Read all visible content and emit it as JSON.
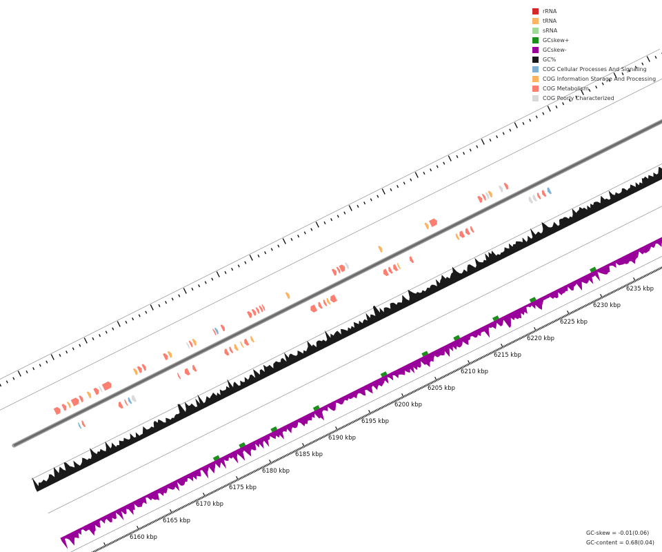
{
  "legend": [
    {
      "label": "rRNA",
      "color": "#d62728"
    },
    {
      "label": "tRNA",
      "color": "#fdb462"
    },
    {
      "label": "sRNA",
      "color": "#a1d99b"
    },
    {
      "label": "GCskew+",
      "color": "#1a8f1a"
    },
    {
      "label": "GCskew-",
      "color": "#990099"
    },
    {
      "label": "GC%",
      "color": "#1a1a1a"
    },
    {
      "label": "COG Cellular Processes And Signaling",
      "color": "#80b1d3"
    },
    {
      "label": "COG Information Storage And Processing",
      "color": "#fdb462"
    },
    {
      "label": "COG Metabolism",
      "color": "#fb8072"
    },
    {
      "label": "COG Poorly Characterized",
      "color": "#d9d9d9"
    }
  ],
  "stats": {
    "gc_skew_label": "GC-skew = -0.01(0.06)",
    "gc_content_label": "GC-content = 0.68(0.04)"
  },
  "chart_data": {
    "type": "genome-linear-track",
    "axis_unit": "kbp",
    "range_kbp": [
      6156,
      6240
    ],
    "tick_labels": [
      "6160 kbp",
      "6165 kbp",
      "6170 kbp",
      "6175 kbp",
      "6180 kbp",
      "6185 kbp",
      "6190 kbp",
      "6195 kbp",
      "6200 kbp",
      "6205 kbp",
      "6210 kbp",
      "6215 kbp",
      "6220 kbp",
      "6225 kbp",
      "6230 kbp",
      "6235 kbp"
    ],
    "tick_values": [
      6160,
      6165,
      6170,
      6175,
      6180,
      6185,
      6190,
      6195,
      6200,
      6205,
      6210,
      6215,
      6220,
      6225,
      6230,
      6235
    ],
    "tracks": [
      "features-forward",
      "backbone",
      "features-reverse",
      "GC%",
      "GC-skew",
      "scale"
    ],
    "features": [
      {
        "start": 6157.0,
        "len": 0.8,
        "strand": 1,
        "cat": "COG Metabolism"
      },
      {
        "start": 6158.2,
        "len": 0.5,
        "strand": 1,
        "cat": "COG Metabolism"
      },
      {
        "start": 6159.0,
        "len": 0.3,
        "strand": 1,
        "cat": "tRNA"
      },
      {
        "start": 6159.6,
        "len": 1.0,
        "strand": 1,
        "cat": "COG Metabolism"
      },
      {
        "start": 6160.8,
        "len": 0.4,
        "strand": 1,
        "cat": "COG Metabolism"
      },
      {
        "start": 6162.0,
        "len": 0.4,
        "strand": 1,
        "cat": "COG Information Storage And Processing"
      },
      {
        "start": 6163.0,
        "len": 0.6,
        "strand": 1,
        "cat": "COG Metabolism"
      },
      {
        "start": 6163.8,
        "len": 0.2,
        "strand": 1,
        "cat": "COG Poorly Characterized"
      },
      {
        "start": 6164.3,
        "len": 1.2,
        "strand": 1,
        "cat": "COG Metabolism"
      },
      {
        "start": 6169.0,
        "len": 0.4,
        "strand": 1,
        "cat": "COG Information Storage And Processing"
      },
      {
        "start": 6169.6,
        "len": 0.5,
        "strand": 1,
        "cat": "COG Metabolism"
      },
      {
        "start": 6170.3,
        "len": 0.4,
        "strand": 1,
        "cat": "COG Metabolism"
      },
      {
        "start": 6173.5,
        "len": 0.5,
        "strand": 1,
        "cat": "COG Metabolism"
      },
      {
        "start": 6174.2,
        "len": 0.4,
        "strand": 1,
        "cat": "COG Information Storage And Processing"
      },
      {
        "start": 6177.0,
        "len": 0.2,
        "strand": 1,
        "cat": "COG Poorly Characterized"
      },
      {
        "start": 6177.4,
        "len": 0.3,
        "strand": 1,
        "cat": "COG Metabolism"
      },
      {
        "start": 6177.9,
        "len": 0.4,
        "strand": 1,
        "cat": "COG Information Storage And Processing"
      },
      {
        "start": 6181.0,
        "len": 0.2,
        "strand": 1,
        "cat": "COG Metabolism"
      },
      {
        "start": 6181.3,
        "len": 0.3,
        "strand": 1,
        "cat": "COG Cellular Processes And Signaling"
      },
      {
        "start": 6182.2,
        "len": 0.4,
        "strand": 1,
        "cat": "COG Metabolism"
      },
      {
        "start": 6186.2,
        "len": 0.5,
        "strand": 1,
        "cat": "COG Metabolism"
      },
      {
        "start": 6186.9,
        "len": 0.4,
        "strand": 1,
        "cat": "COG Metabolism"
      },
      {
        "start": 6187.5,
        "len": 0.3,
        "strand": 1,
        "cat": "COG Metabolism"
      },
      {
        "start": 6188.0,
        "len": 0.3,
        "strand": 1,
        "cat": "COG Metabolism"
      },
      {
        "start": 6188.4,
        "len": 0.2,
        "strand": 1,
        "cat": "COG Metabolism"
      },
      {
        "start": 6192.0,
        "len": 0.4,
        "strand": 1,
        "cat": "COG Information Storage And Processing"
      },
      {
        "start": 6199.0,
        "len": 0.5,
        "strand": 1,
        "cat": "COG Metabolism"
      },
      {
        "start": 6199.7,
        "len": 0.3,
        "strand": 1,
        "cat": "COG Metabolism"
      },
      {
        "start": 6200.1,
        "len": 0.7,
        "strand": 1,
        "cat": "COG Metabolism"
      },
      {
        "start": 6201.0,
        "len": 0.3,
        "strand": 1,
        "cat": "COG Poorly Characterized"
      },
      {
        "start": 6206.0,
        "len": 0.4,
        "strand": 1,
        "cat": "COG Information Storage And Processing"
      },
      {
        "start": 6213.0,
        "len": 0.4,
        "strand": 1,
        "cat": "COG Information Storage And Processing"
      },
      {
        "start": 6213.7,
        "len": 1.0,
        "strand": 1,
        "cat": "COG Metabolism"
      },
      {
        "start": 6221.0,
        "len": 0.5,
        "strand": 1,
        "cat": "COG Metabolism"
      },
      {
        "start": 6221.7,
        "len": 0.3,
        "strand": 1,
        "cat": "COG Metabolism"
      },
      {
        "start": 6222.2,
        "len": 0.3,
        "strand": 1,
        "cat": "COG Poorly Characterized"
      },
      {
        "start": 6222.6,
        "len": 0.4,
        "strand": 1,
        "cat": "COG Information Storage And Processing"
      },
      {
        "start": 6224.2,
        "len": 0.4,
        "strand": 1,
        "cat": "COG Poorly Characterized"
      },
      {
        "start": 6225.0,
        "len": 0.4,
        "strand": 1,
        "cat": "COG Metabolism"
      },
      {
        "start": 6159.0,
        "len": 0.2,
        "strand": -1,
        "cat": "COG Cellular Processes And Signaling"
      },
      {
        "start": 6159.5,
        "len": 0.3,
        "strand": -1,
        "cat": "COG Metabolism"
      },
      {
        "start": 6165.0,
        "len": 0.5,
        "strand": -1,
        "cat": "COG Metabolism"
      },
      {
        "start": 6166.0,
        "len": 0.2,
        "strand": -1,
        "cat": "COG Metabolism"
      },
      {
        "start": 6166.5,
        "len": 0.3,
        "strand": -1,
        "cat": "COG Cellular Processes And Signaling"
      },
      {
        "start": 6167.0,
        "len": 0.5,
        "strand": -1,
        "cat": "COG Poorly Characterized"
      },
      {
        "start": 6174.0,
        "len": 0.2,
        "strand": -1,
        "cat": "COG Metabolism"
      },
      {
        "start": 6175.0,
        "len": 0.6,
        "strand": -1,
        "cat": "COG Metabolism"
      },
      {
        "start": 6176.2,
        "len": 0.4,
        "strand": -1,
        "cat": "COG Metabolism"
      },
      {
        "start": 6181.0,
        "len": 0.5,
        "strand": -1,
        "cat": "COG Metabolism"
      },
      {
        "start": 6181.8,
        "len": 0.3,
        "strand": -1,
        "cat": "COG Metabolism"
      },
      {
        "start": 6182.5,
        "len": 0.4,
        "strand": -1,
        "cat": "COG Information Storage And Processing"
      },
      {
        "start": 6183.5,
        "len": 0.2,
        "strand": -1,
        "cat": "COG Information Storage And Processing"
      },
      {
        "start": 6184.0,
        "len": 0.5,
        "strand": -1,
        "cat": "COG Metabolism"
      },
      {
        "start": 6185.0,
        "len": 0.3,
        "strand": -1,
        "cat": "COG Information Storage And Processing"
      },
      {
        "start": 6194.0,
        "len": 0.8,
        "strand": -1,
        "cat": "COG Metabolism"
      },
      {
        "start": 6195.2,
        "len": 0.4,
        "strand": -1,
        "cat": "COG Metabolism"
      },
      {
        "start": 6196.0,
        "len": 0.3,
        "strand": -1,
        "cat": "COG Metabolism"
      },
      {
        "start": 6196.5,
        "len": 0.3,
        "strand": -1,
        "cat": "COG Information Storage And Processing"
      },
      {
        "start": 6197.0,
        "len": 0.8,
        "strand": -1,
        "cat": "COG Metabolism"
      },
      {
        "start": 6205.0,
        "len": 0.6,
        "strand": -1,
        "cat": "COG Metabolism"
      },
      {
        "start": 6205.8,
        "len": 0.4,
        "strand": -1,
        "cat": "COG Metabolism"
      },
      {
        "start": 6206.5,
        "len": 0.5,
        "strand": -1,
        "cat": "COG Metabolism"
      },
      {
        "start": 6207.2,
        "len": 0.2,
        "strand": -1,
        "cat": "COG Information Storage And Processing"
      },
      {
        "start": 6209.0,
        "len": 0.4,
        "strand": -1,
        "cat": "COG Metabolism"
      },
      {
        "start": 6216.0,
        "len": 0.3,
        "strand": -1,
        "cat": "COG Information Storage And Processing"
      },
      {
        "start": 6216.5,
        "len": 0.6,
        "strand": -1,
        "cat": "COG Metabolism"
      },
      {
        "start": 6217.4,
        "len": 0.5,
        "strand": -1,
        "cat": "COG Metabolism"
      },
      {
        "start": 6218.2,
        "len": 0.3,
        "strand": -1,
        "cat": "COG Metabolism"
      },
      {
        "start": 6227.0,
        "len": 0.4,
        "strand": -1,
        "cat": "COG Poorly Characterized"
      },
      {
        "start": 6227.6,
        "len": 0.4,
        "strand": -1,
        "cat": "COG Poorly Characterized"
      },
      {
        "start": 6228.3,
        "len": 0.3,
        "strand": -1,
        "cat": "COG Metabolism"
      },
      {
        "start": 6229.0,
        "len": 0.4,
        "strand": -1,
        "cat": "COG Metabolism"
      },
      {
        "start": 6229.8,
        "len": 0.4,
        "strand": -1,
        "cat": "COG Cellular Processes And Signaling"
      }
    ]
  }
}
